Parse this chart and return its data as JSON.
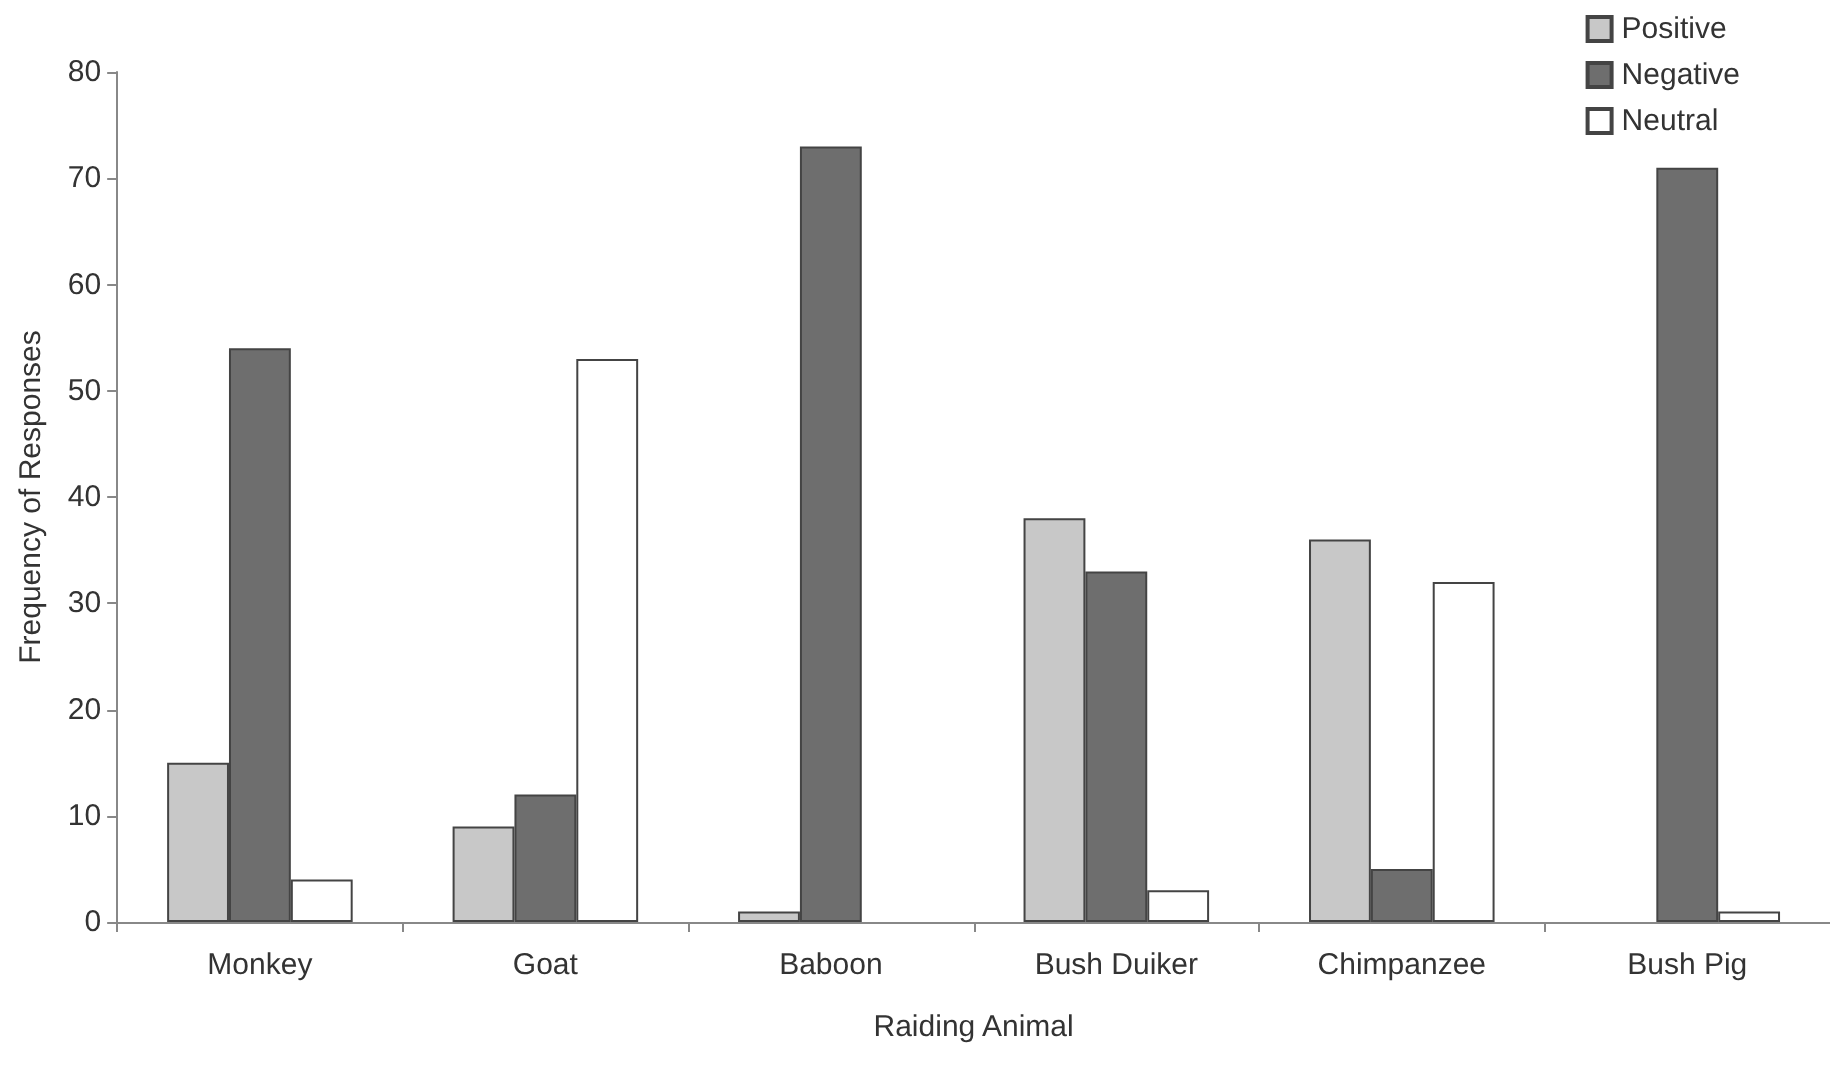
{
  "chart_data": {
    "type": "bar",
    "xlabel": "Raiding Animal",
    "ylabel": "Frequency of Responses",
    "categories": [
      "Monkey",
      "Goat",
      "Baboon",
      "Bush Duiker",
      "Chimpanzee",
      "Bush Pig"
    ],
    "series": [
      {
        "name": "Positive",
        "color": "#c8c8c8",
        "values": [
          15,
          9,
          1,
          38,
          36,
          0
        ]
      },
      {
        "name": "Negative",
        "color": "#6e6e6e",
        "values": [
          54,
          12,
          73,
          33,
          5,
          71
        ]
      },
      {
        "name": "Neutral",
        "color": "#ffffff",
        "values": [
          4,
          53,
          0,
          3,
          32,
          1
        ]
      }
    ],
    "ylim": [
      0,
      80
    ],
    "yticks": [
      0,
      10,
      20,
      30,
      40,
      50,
      60,
      70,
      80
    ],
    "grid": false,
    "legend": "top right"
  }
}
